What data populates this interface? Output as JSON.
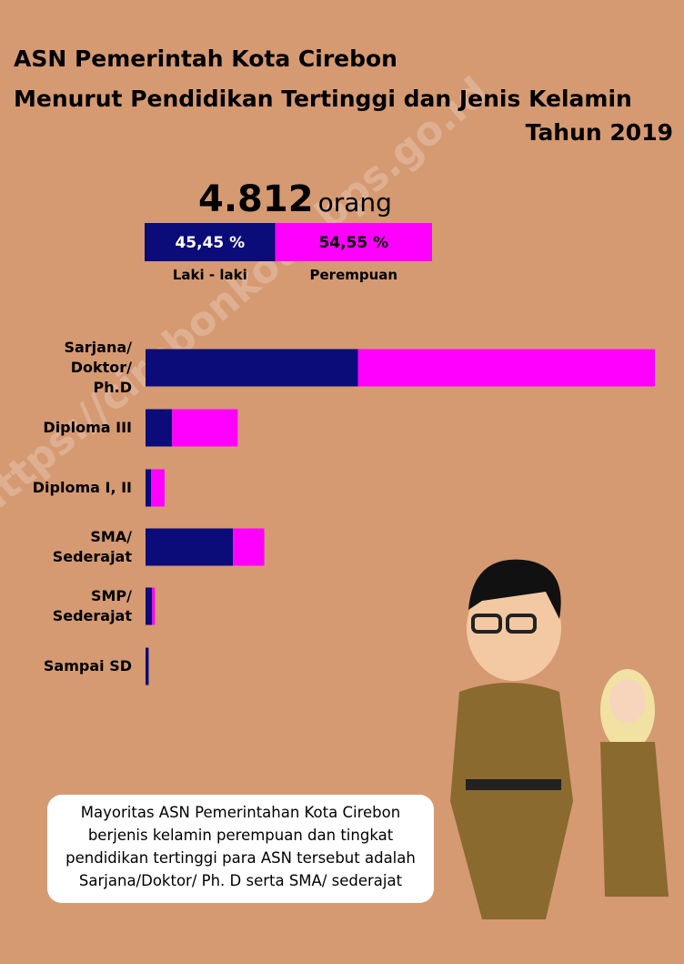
{
  "header": {
    "title_lines": [
      "ASN Pemerintah Kota Cirebon",
      "Menurut Pendidikan Tertinggi dan Jenis Kelamin",
      "Tahun 2019"
    ]
  },
  "total": {
    "value": 4812,
    "label": "4.812",
    "unit": "orang"
  },
  "gender_split": [
    {
      "name": "Laki - laki",
      "value": 45.45,
      "label": "45,45 %",
      "color": "#0b0b7a"
    },
    {
      "name": "Perempuan",
      "value": 54.55,
      "label": "54,55 %",
      "color": "#ff00ff"
    }
  ],
  "chart_data": {
    "type": "stacked-bar-horizontal",
    "categories": [
      "Sarjana/\nDoktor/\nPh.D",
      "Diploma III",
      "Diploma I, II",
      "SMA/\nSederajat",
      "SMP/\nSederajat",
      "Sampai SD"
    ],
    "series": [
      {
        "color": "#0b0b7a",
        "values": [
          1360,
          170,
          35,
          560,
          42,
          20
        ]
      },
      {
        "color": "#ff00ff",
        "values": [
          1900,
          420,
          87,
          200,
          18,
          0
        ]
      }
    ]
  },
  "callout": {
    "lines": [
      "Mayoritas ASN Pemerintahan Kota Cirebon",
      "berjenis kelamin perempuan dan tingkat",
      "pendidikan tertinggi para ASN tersebut adalah",
      "Sarjana/Doktor/ Ph. D serta SMA/ sederajat"
    ]
  },
  "watermark": "https://cirebonkota.bps.go.id"
}
